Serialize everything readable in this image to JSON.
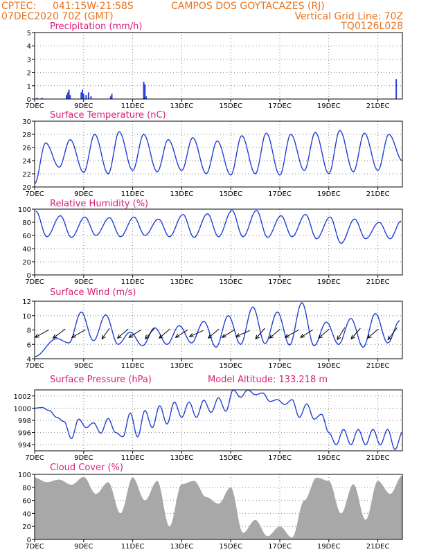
{
  "header": {
    "line1_left": "CPTEC:",
    "line1_coords": "041:15W-21:58S",
    "line1_city": "CAMPOS DOS GOYTACAZES (RJ)",
    "line2_left": "07DEC2020 70Z (GMT)",
    "line2_right": "Vertical Grid Line: 70Z",
    "line3_right": "TQ0126L028"
  },
  "x_axis": {
    "ticks": [
      "7DEC",
      "9DEC",
      "11DEC",
      "13DEC",
      "15DEC",
      "17DEC",
      "19DEC",
      "21DEC"
    ],
    "tick_days": [
      0,
      2,
      4,
      6,
      8,
      10,
      12,
      14
    ],
    "range_days": [
      0,
      15
    ]
  },
  "panels": [
    {
      "id": "precip",
      "title": "Precipitation  (mm/h)",
      "extra": ""
    },
    {
      "id": "temp",
      "title": "Surface Temperature  (nC)",
      "extra": ""
    },
    {
      "id": "rh",
      "title": "Relative Humidity  (%)",
      "extra": ""
    },
    {
      "id": "wind",
      "title": "Surface Wind  (m/s)",
      "extra": ""
    },
    {
      "id": "pres",
      "title": "Surface Pressure  (hPa)",
      "extra": "Model Altitude: 133.218  m"
    },
    {
      "id": "cloud",
      "title": "Cloud Cover  (%)",
      "extra": ""
    }
  ],
  "colors": {
    "line": "#1f3fd6",
    "bar": "#2a44d8",
    "cloud": "#a8a8a8",
    "header": "#e8731e",
    "title": "#d6207a"
  },
  "chart_data": [
    {
      "type": "bar",
      "title": "Precipitation  (mm/h)",
      "ylim": [
        0,
        5
      ],
      "yticks": [
        0,
        1,
        2,
        3,
        4,
        5
      ],
      "x": [
        0.1,
        0.3,
        1.3,
        1.35,
        1.4,
        1.45,
        1.9,
        1.95,
        2.0,
        2.1,
        2.2,
        2.3,
        3.1,
        3.15,
        4.45,
        4.5,
        4.55,
        14.75
      ],
      "values": [
        0.1,
        0.1,
        0.3,
        0.5,
        0.7,
        0.3,
        0.5,
        0.7,
        0.4,
        0.3,
        0.5,
        0.2,
        0.2,
        0.4,
        1.3,
        1.1,
        0.2,
        1.5
      ]
    },
    {
      "type": "line",
      "title": "Surface Temperature  (nC)",
      "ylim": [
        20,
        30
      ],
      "yticks": [
        20,
        22,
        24,
        26,
        28,
        30
      ],
      "daily_max_x": [
        0.45,
        1.45,
        2.45,
        3.45,
        4.45,
        5.45,
        6.45,
        7.45,
        8.45,
        9.45,
        10.45,
        11.45,
        12.45,
        13.45,
        14.45
      ],
      "daily_max": [
        26.7,
        27.2,
        28.0,
        28.4,
        28.0,
        27.2,
        27.5,
        27.0,
        27.8,
        28.2,
        28.0,
        28.3,
        28.6,
        28.2,
        28.0
      ],
      "daily_min_x": [
        0.0,
        1.0,
        2.0,
        3.0,
        4.0,
        5.0,
        6.0,
        7.0,
        8.0,
        9.0,
        10.0,
        11.0,
        12.0,
        13.0,
        14.0,
        15.0
      ],
      "daily_min": [
        20.5,
        23.0,
        22.2,
        22.0,
        22.5,
        22.3,
        22.5,
        22.0,
        21.8,
        22.0,
        21.8,
        22.5,
        22.0,
        22.3,
        22.5,
        24.0
      ]
    },
    {
      "type": "line",
      "title": "Relative Humidity  (%)",
      "ylim": [
        0,
        100
      ],
      "yticks": [
        0,
        20,
        40,
        60,
        80,
        100
      ],
      "daily_min_x": [
        0.5,
        1.5,
        2.5,
        3.5,
        4.5,
        5.5,
        6.5,
        7.5,
        8.5,
        9.5,
        10.5,
        11.5,
        12.5,
        13.5,
        14.5
      ],
      "daily_min": [
        58,
        57,
        60,
        58,
        60,
        58,
        57,
        58,
        58,
        57,
        58,
        55,
        48,
        55,
        55
      ],
      "daily_max_x": [
        0.05,
        1.05,
        2.05,
        3.05,
        4.05,
        5.05,
        6.05,
        7.05,
        8.05,
        9.05,
        10.05,
        11.05,
        12.05,
        13.05,
        14.05,
        14.95
      ],
      "daily_max": [
        97,
        90,
        88,
        87,
        88,
        85,
        92,
        93,
        98,
        98,
        90,
        92,
        88,
        85,
        80,
        82
      ]
    },
    {
      "type": "line",
      "title": "Surface Wind  (m/s)",
      "ylim": [
        4,
        12
      ],
      "yticks": [
        4,
        6,
        8,
        10,
        12
      ],
      "daily_max_x": [
        0.9,
        1.9,
        2.9,
        3.9,
        4.9,
        5.9,
        6.9,
        7.9,
        8.9,
        9.9,
        10.9,
        11.9,
        12.9,
        13.9,
        14.9
      ],
      "daily_max": [
        6.8,
        10.5,
        10.1,
        7.7,
        8.3,
        8.6,
        9.2,
        10.0,
        11.2,
        10.5,
        11.8,
        9.1,
        9.6,
        10.3,
        9.3
      ],
      "daily_min_x": [
        0.0,
        1.4,
        2.4,
        3.4,
        4.4,
        5.4,
        6.4,
        7.4,
        8.4,
        9.4,
        10.4,
        11.4,
        12.4,
        13.4,
        14.4
      ],
      "daily_min": [
        4.3,
        6.2,
        6.5,
        6.0,
        5.8,
        6.0,
        6.2,
        5.6,
        6.0,
        6.1,
        5.9,
        5.8,
        6.0,
        5.6,
        6.2
      ],
      "vector_x": [
        0.3,
        1.0,
        1.8,
        2.9,
        3.6,
        4.1,
        4.7,
        5.3,
        6.0,
        6.6,
        7.3,
        7.9,
        8.5,
        9.2,
        9.8,
        10.5,
        11.1,
        11.8,
        12.5,
        13.1,
        13.8,
        14.6
      ],
      "vector_u": [
        -0.9,
        -0.8,
        -0.9,
        -0.5,
        -0.7,
        -0.8,
        -0.6,
        -0.7,
        -0.8,
        -0.9,
        -0.7,
        -0.8,
        -0.9,
        -0.6,
        -0.7,
        -0.9,
        -0.8,
        -0.7,
        -0.5,
        -0.6,
        -0.7,
        -0.6
      ],
      "vector_v": [
        -0.5,
        -0.6,
        -0.5,
        -0.7,
        -0.6,
        -0.5,
        -0.7,
        -0.6,
        -0.5,
        -0.4,
        -0.6,
        -0.5,
        -0.4,
        -0.7,
        -0.6,
        -0.5,
        -0.5,
        -0.6,
        -0.8,
        -0.7,
        -0.6,
        -0.8
      ]
    },
    {
      "type": "line",
      "title": "Surface Pressure  (hPa)",
      "ylim": [
        993,
        1003
      ],
      "yticks": [
        994,
        996,
        998,
        1000,
        1002
      ],
      "x": [
        0.0,
        0.3,
        0.6,
        0.9,
        1.2,
        1.5,
        1.8,
        2.1,
        2.4,
        2.7,
        3.0,
        3.3,
        3.6,
        3.9,
        4.2,
        4.5,
        4.8,
        5.1,
        5.4,
        5.7,
        6.0,
        6.3,
        6.6,
        6.9,
        7.2,
        7.5,
        7.8,
        8.1,
        8.4,
        8.7,
        9.0,
        9.3,
        9.6,
        9.9,
        10.2,
        10.5,
        10.8,
        11.1,
        11.4,
        11.7,
        12.0,
        12.3,
        12.6,
        12.9,
        13.2,
        13.5,
        13.8,
        14.1,
        14.4,
        14.7,
        15.0
      ],
      "values": [
        1000.0,
        1000.1,
        999.6,
        998.5,
        997.8,
        995.0,
        998.2,
        996.8,
        997.6,
        995.9,
        998.3,
        996.0,
        995.3,
        999.2,
        995.3,
        999.6,
        996.8,
        1000.4,
        997.4,
        1001.0,
        998.5,
        1001.0,
        998.5,
        1001.3,
        999.3,
        1001.7,
        999.5,
        1003.0,
        1001.8,
        1003.0,
        1002.2,
        1002.5,
        1001.1,
        1001.4,
        1000.6,
        1001.4,
        998.5,
        1000.7,
        998.2,
        999.0,
        996.0,
        994.0,
        996.5,
        994.0,
        996.5,
        994.0,
        996.5,
        994.0,
        996.5,
        993.2,
        996.0
      ]
    },
    {
      "type": "area",
      "title": "Cloud Cover  (%)",
      "ylim": [
        0,
        100
      ],
      "yticks": [
        0,
        20,
        40,
        60,
        80,
        100
      ],
      "x": [
        0.0,
        0.5,
        1.0,
        1.5,
        2.0,
        2.5,
        3.0,
        3.5,
        4.0,
        4.5,
        5.0,
        5.5,
        6.0,
        6.5,
        7.0,
        7.5,
        8.0,
        8.5,
        9.0,
        9.5,
        10.0,
        10.5,
        11.0,
        11.5,
        12.0,
        12.5,
        13.0,
        13.5,
        14.0,
        14.5,
        15.0
      ],
      "values": [
        95,
        88,
        92,
        84,
        96,
        70,
        88,
        40,
        95,
        60,
        90,
        20,
        85,
        90,
        65,
        55,
        80,
        10,
        30,
        5,
        20,
        3,
        60,
        95,
        90,
        40,
        85,
        30,
        90,
        70,
        98
      ]
    }
  ]
}
